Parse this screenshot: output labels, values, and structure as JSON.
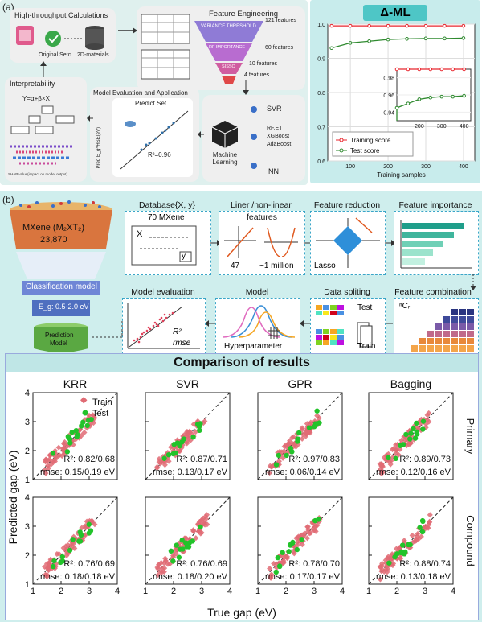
{
  "panel_a": {
    "label": "(a)",
    "hpc_title": "High-throughput Calculations",
    "original_setc": "Original Setc",
    "materials_2d": "2D-materials",
    "feature_engineering": "Feature Engineering",
    "f121": "121 features",
    "f60": "60 features",
    "f10": "10 features",
    "f4": "4 features",
    "variance_threshold": "VARIANCE THRESHOLD",
    "rf_importance": "RF IMPORTANCE",
    "sisso": "SISSO",
    "interpretability": "Interpretability",
    "equation": "Y=α+β×X",
    "shap_caption": "SHAP value(impact on model output)",
    "model_eval_title": "Model Evaluation and Application",
    "predict_set": "Predict Set",
    "r2": "R²=0.96",
    "ylabel_pred": "Pred E_g^HSE(eV)",
    "ml_label": "Machine Learning",
    "svr": "SVR",
    "rf_et": "RF,ET",
    "xgboost": "XGBoost",
    "adaboost": "AdaBoost",
    "nn": "NN",
    "delta_ml": "Δ-ML",
    "training_score": "Training score",
    "test_score": "Test score",
    "xlabel": "Training samples",
    "y_ticks": [
      "0.6",
      "0.7",
      "0.8",
      "0.9",
      "1.0"
    ],
    "x_ticks": [
      "100",
      "200",
      "300",
      "400"
    ],
    "inset_y_ticks": [
      "0.94",
      "0.96",
      "0.98"
    ],
    "inset_x_ticks": [
      "200",
      "300",
      "400"
    ]
  },
  "panel_b": {
    "label": "(b)",
    "mxene_formula": "MXene (M₂XT₂)",
    "mxene_count": "23,870",
    "classification_model": "Classification model",
    "eg_range": "E_g: 0.5-2.0 eV",
    "prediction_model_1": "Prediction",
    "prediction_model_2": "Model",
    "database_title": "Database{X, y}",
    "mxene_70": "70 MXene",
    "x_sym": "X",
    "y_sym": "y",
    "liner_title": "Liner /non-linear",
    "features_word": "features",
    "n47": "47",
    "n1m": "~1 million",
    "feature_reduction": "Feature reduction",
    "lasso": "Lasso",
    "feature_importance": "Feature importance",
    "feature_combination": "Feature combination",
    "ncr": "ⁿCᵣ",
    "data_spliting": "Data spliting",
    "test": "Test",
    "train": "Train",
    "model": "Model",
    "hyperparameter": "Hyperparameter",
    "model_evaluation": "Model evaluation",
    "r2_sym": "R²",
    "rmse_sym": "rmse"
  },
  "comparison": {
    "title": "Comparison of results",
    "columns": [
      "KRR",
      "SVR",
      "GPR",
      "Bagging"
    ],
    "rows": [
      "Primary",
      "Compound"
    ],
    "ylabel": "Predicted gap (eV)",
    "xlabel": "True gap (eV)",
    "legend_train": "Train",
    "legend_test": "Test",
    "ticks": [
      "1",
      "2",
      "3",
      "4"
    ],
    "r2_prefix": "R²: ",
    "rmse_prefix": "rmse: ",
    "primary": [
      {
        "r2": "0.82/0.68",
        "rmse": "0.15/0.19 eV"
      },
      {
        "r2": "0.87/0.71",
        "rmse": "0.13/0.17 eV"
      },
      {
        "r2": "0.97/0.83",
        "rmse": "0.06/0.14 eV"
      },
      {
        "r2": "0.89/0.73",
        "rmse": "0.12/0.16 eV"
      }
    ],
    "compound": [
      {
        "r2": "0.76/0.69",
        "rmse": "0.18/0.18 eV"
      },
      {
        "r2": "0.76/0.69",
        "rmse": "0.18/0.20 eV"
      },
      {
        "r2": "0.78/0.70",
        "rmse": "0.17/0.17 eV"
      },
      {
        "r2": "0.88/0.74",
        "rmse": "0.13/0.18 eV"
      }
    ]
  },
  "colors": {
    "teal": "#4ec6c6",
    "train": "#e06b74",
    "test": "#22c32a",
    "red_line": "#e8262e",
    "green_line": "#2f8a2f",
    "dash_border": "#3aa6c8"
  },
  "chart_data": {
    "type": "line",
    "x": [
      50,
      100,
      150,
      200,
      250,
      300,
      350,
      400
    ],
    "series": [
      {
        "name": "Training score",
        "values": [
          0.995,
          0.995,
          0.995,
          0.995,
          0.995,
          0.995,
          0.995,
          0.995
        ]
      },
      {
        "name": "Test score",
        "values": [
          0.93,
          0.945,
          0.95,
          0.955,
          0.957,
          0.958,
          0.958,
          0.959
        ]
      }
    ],
    "xlabel": "Training samples",
    "ylim": [
      0.6,
      1.0
    ],
    "grid": true,
    "legend": "bottom-right"
  }
}
